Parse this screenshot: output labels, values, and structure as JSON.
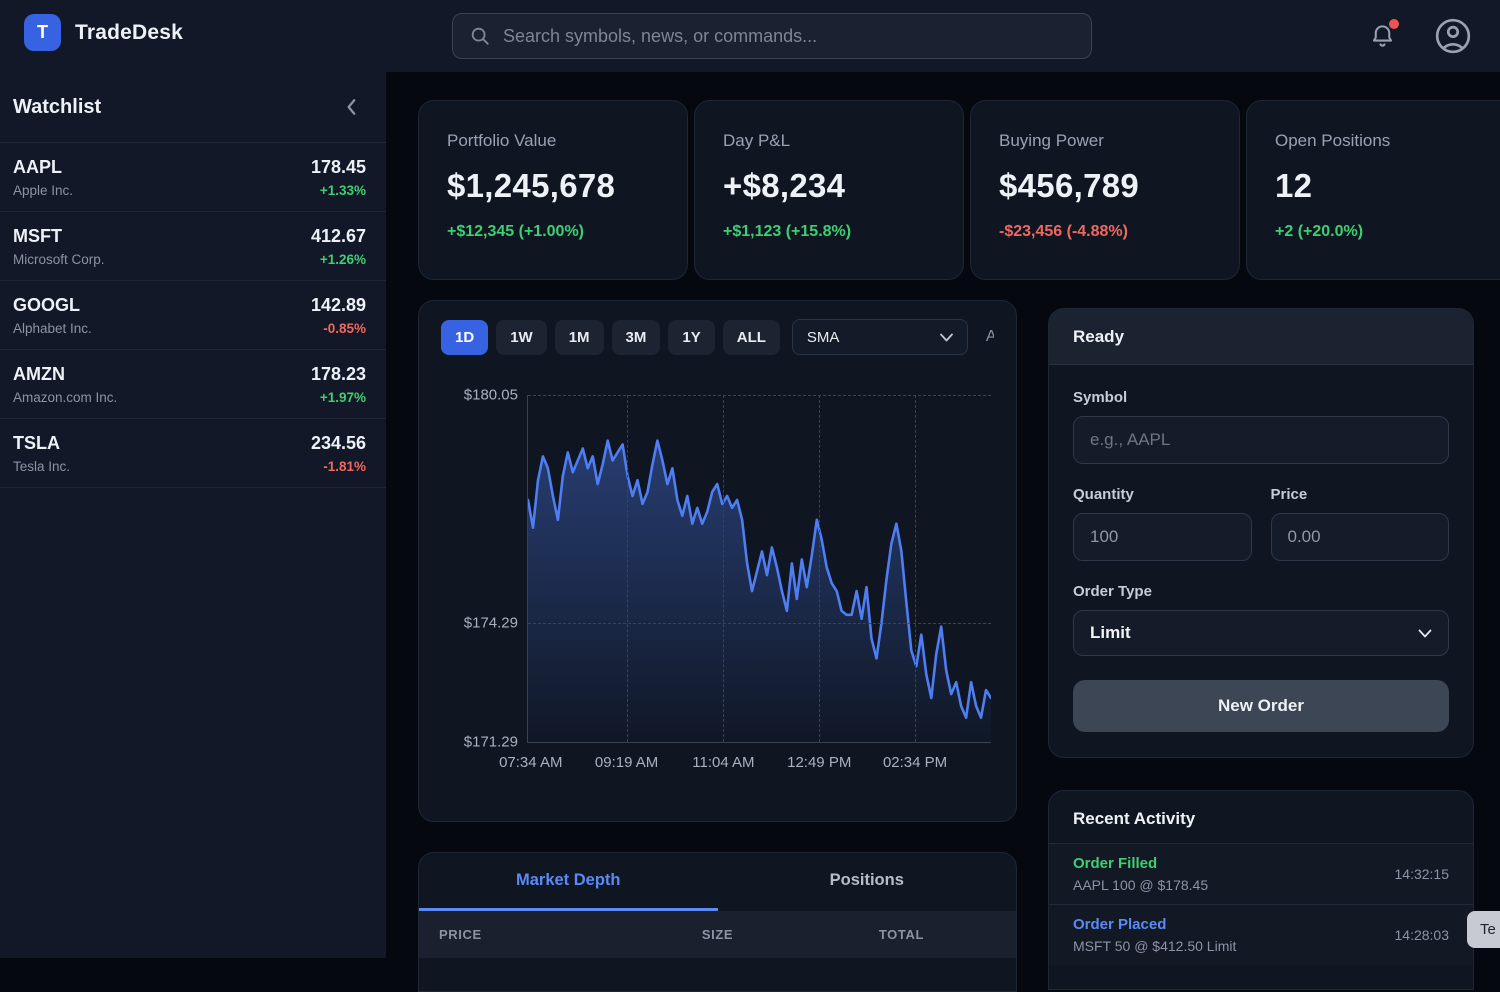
{
  "colors": {
    "accent": "#3763e3",
    "accent_light": "#5b8af5",
    "green": "#3ecf72",
    "red": "#f0685e",
    "chart_line": "#4f7df2"
  },
  "topbar": {
    "logo_letter": "T",
    "app_name": "TradeDesk",
    "search_placeholder": "Search symbols, news, or commands..."
  },
  "sidebar": {
    "title": "Watchlist",
    "items": [
      {
        "symbol": "AAPL",
        "name": "Apple Inc.",
        "price": "178.45",
        "change": "+1.33%",
        "direction": "up"
      },
      {
        "symbol": "MSFT",
        "name": "Microsoft Corp.",
        "price": "412.67",
        "change": "+1.26%",
        "direction": "up"
      },
      {
        "symbol": "GOOGL",
        "name": "Alphabet Inc.",
        "price": "142.89",
        "change": "-0.85%",
        "direction": "down"
      },
      {
        "symbol": "AMZN",
        "name": "Amazon.com Inc.",
        "price": "178.23",
        "change": "+1.97%",
        "direction": "up"
      },
      {
        "symbol": "TSLA",
        "name": "Tesla Inc.",
        "price": "234.56",
        "change": "-1.81%",
        "direction": "down"
      }
    ]
  },
  "stats": {
    "cards": [
      {
        "label": "Portfolio Value",
        "value": "$1,245,678",
        "change": "+$12,345 (+1.00%)",
        "direction": "up"
      },
      {
        "label": "Day P&L",
        "value": "+$8,234",
        "change": "+$1,123 (+15.8%)",
        "direction": "up"
      },
      {
        "label": "Buying Power",
        "value": "$456,789",
        "change": "-$23,456 (-4.88%)",
        "direction": "down"
      },
      {
        "label": "Open Positions",
        "value": "12",
        "change": "+2 (+20.0%)",
        "direction": "up"
      }
    ]
  },
  "chart": {
    "timeframes": [
      "1D",
      "1W",
      "1M",
      "3M",
      "1Y",
      "ALL"
    ],
    "active_timeframe": "1D",
    "indicator": "SMA",
    "annotations_label": "Annotations"
  },
  "chart_data": {
    "type": "line",
    "timeframe": "1D",
    "x_labels": [
      "07:34 AM",
      "09:19 AM",
      "11:04 AM",
      "12:49 PM",
      "02:34 PM"
    ],
    "y_ticks": [
      "$180.05",
      "$174.29",
      "$171.29"
    ],
    "ylim": [
      171.29,
      180.05
    ],
    "grid": "dashed",
    "legend": "none",
    "prices": [
      177.4,
      176.7,
      177.9,
      178.5,
      178.2,
      177.5,
      176.9,
      178.0,
      178.6,
      178.1,
      178.4,
      178.7,
      178.2,
      178.5,
      177.8,
      178.3,
      178.9,
      178.4,
      178.6,
      178.8,
      178.0,
      177.5,
      177.9,
      177.3,
      177.6,
      178.3,
      178.9,
      178.4,
      177.8,
      178.2,
      177.4,
      177.0,
      177.5,
      176.8,
      177.2,
      176.8,
      177.1,
      177.6,
      177.8,
      177.3,
      177.5,
      177.2,
      177.4,
      176.9,
      175.8,
      175.1,
      175.6,
      176.1,
      175.5,
      176.2,
      175.7,
      175.1,
      174.6,
      175.8,
      174.9,
      175.9,
      175.2,
      176.0,
      176.9,
      176.4,
      175.7,
      175.3,
      175.1,
      174.6,
      174.5,
      174.5,
      175.1,
      174.4,
      175.2,
      173.9,
      173.4,
      174.3,
      175.4,
      176.3,
      176.8,
      176.1,
      174.8,
      173.6,
      173.2,
      174.0,
      173.0,
      172.4,
      173.5,
      174.2,
      173.1,
      172.5,
      172.8,
      172.2,
      171.9,
      172.8,
      172.2,
      171.9,
      172.6,
      172.4
    ]
  },
  "order_panel": {
    "status": "Ready",
    "symbol_label": "Symbol",
    "symbol_placeholder": "e.g., AAPL",
    "quantity_label": "Quantity",
    "quantity_value": "100",
    "price_label": "Price",
    "price_value": "0.00",
    "order_type_label": "Order Type",
    "order_type_value": "Limit",
    "submit_label": "New Order"
  },
  "activity": {
    "title": "Recent Activity",
    "items": [
      {
        "title": "Order Filled",
        "detail": "AAPL 100 @ $178.45",
        "time": "14:32:15",
        "status": "filled"
      },
      {
        "title": "Order Placed",
        "detail": "MSFT 50 @ $412.50 Limit",
        "time": "14:28:03",
        "status": "placed"
      }
    ]
  },
  "bottom_panel": {
    "tabs": [
      "Market Depth",
      "Positions"
    ],
    "active_tab": "Market Depth",
    "columns": [
      "PRICE",
      "SIZE",
      "TOTAL"
    ]
  },
  "toast": {
    "text": "Te"
  }
}
